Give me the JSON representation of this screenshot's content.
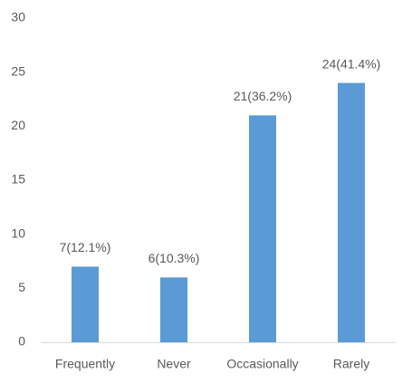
{
  "chart_data": {
    "type": "bar",
    "categories": [
      "Frequently",
      "Never",
      "Occasionally",
      "Rarely"
    ],
    "values": [
      7,
      6,
      21,
      24
    ],
    "value_labels": [
      "7(12.1%)",
      "6(10.3%)",
      "21(36.2%)",
      "24(41.4%)"
    ],
    "color": "#5b9bd5",
    "ylim": [
      0,
      30
    ],
    "yticks": [
      0,
      5,
      10,
      15,
      20,
      25,
      30
    ],
    "grid": false
  }
}
